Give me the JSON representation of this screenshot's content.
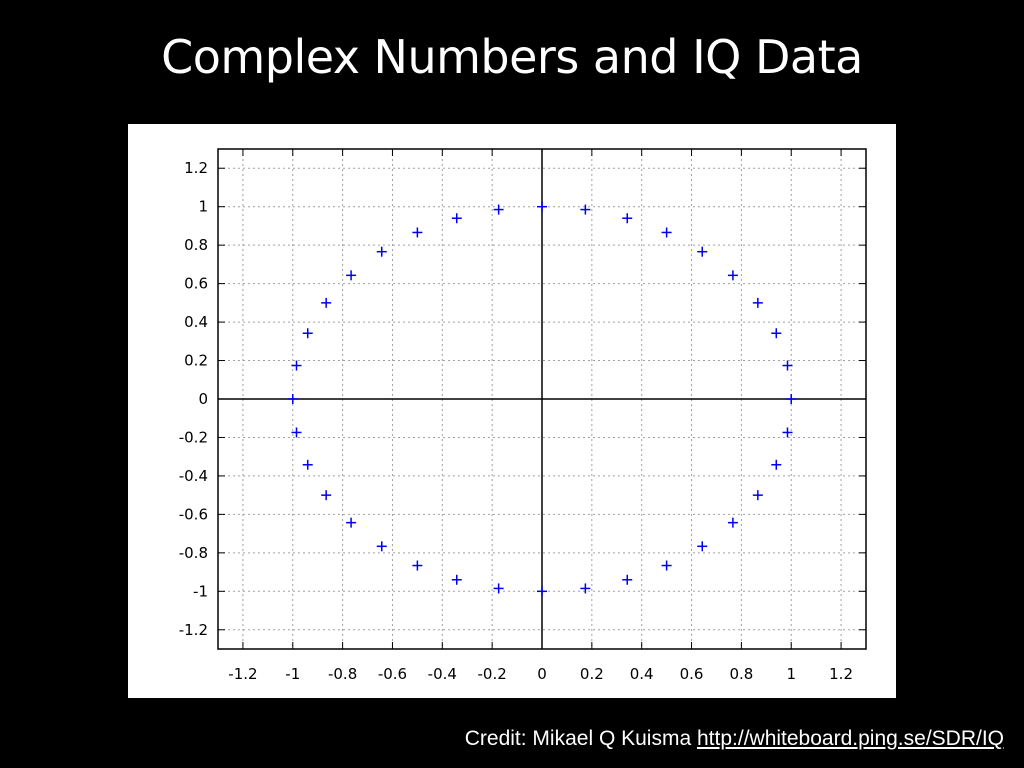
{
  "slide": {
    "title": "Complex Numbers and IQ  Data"
  },
  "credit": {
    "text": "Credit: Mikael Q Kuisma",
    "link": "http://whiteboard.ping.se/SDR/IQ"
  },
  "chart_data": {
    "type": "scatter",
    "title": "",
    "xlabel": "",
    "ylabel": "",
    "xlim": [
      -1.3,
      1.3
    ],
    "ylim": [
      -1.3,
      1.3
    ],
    "grid": true,
    "grid_style": "dotted",
    "axes_through_origin": true,
    "marker": "plus",
    "colors": {
      "marker": "#0000ee",
      "grid": "#a0a0a0",
      "axis": "#000000"
    },
    "xticks": [
      {
        "value": -1.2,
        "label": "-1.2"
      },
      {
        "value": -1.0,
        "label": "-1"
      },
      {
        "value": -0.8,
        "label": "-0.8"
      },
      {
        "value": -0.6,
        "label": "-0.6"
      },
      {
        "value": -0.4,
        "label": "-0.4"
      },
      {
        "value": -0.2,
        "label": "-0.2"
      },
      {
        "value": 0.0,
        "label": "0"
      },
      {
        "value": 0.2,
        "label": "0.2"
      },
      {
        "value": 0.4,
        "label": "0.4"
      },
      {
        "value": 0.6,
        "label": "0.6"
      },
      {
        "value": 0.8,
        "label": "0.8"
      },
      {
        "value": 1.0,
        "label": "1"
      },
      {
        "value": 1.2,
        "label": "1.2"
      }
    ],
    "yticks": [
      {
        "value": 1.2,
        "label": "1.2"
      },
      {
        "value": 1.0,
        "label": "1"
      },
      {
        "value": 0.8,
        "label": "0.8"
      },
      {
        "value": 0.6,
        "label": "0.6"
      },
      {
        "value": 0.4,
        "label": "0.4"
      },
      {
        "value": 0.2,
        "label": "0.2"
      },
      {
        "value": 0.0,
        "label": "0"
      },
      {
        "value": -0.2,
        "label": "-0.2"
      },
      {
        "value": -0.4,
        "label": "-0.4"
      },
      {
        "value": -0.6,
        "label": "-0.6"
      },
      {
        "value": -0.8,
        "label": "-0.8"
      },
      {
        "value": -1.0,
        "label": "-1"
      },
      {
        "value": -1.2,
        "label": "-1.2"
      }
    ],
    "points": [
      {
        "x": 1.0,
        "y": 0.0
      },
      {
        "x": 0.985,
        "y": 0.174
      },
      {
        "x": 0.94,
        "y": 0.342
      },
      {
        "x": 0.866,
        "y": 0.5
      },
      {
        "x": 0.766,
        "y": 0.643
      },
      {
        "x": 0.643,
        "y": 0.766
      },
      {
        "x": 0.5,
        "y": 0.866
      },
      {
        "x": 0.342,
        "y": 0.94
      },
      {
        "x": 0.174,
        "y": 0.985
      },
      {
        "x": 0.0,
        "y": 1.0
      },
      {
        "x": -0.174,
        "y": 0.985
      },
      {
        "x": -0.342,
        "y": 0.94
      },
      {
        "x": -0.5,
        "y": 0.866
      },
      {
        "x": -0.643,
        "y": 0.766
      },
      {
        "x": -0.766,
        "y": 0.643
      },
      {
        "x": -0.866,
        "y": 0.5
      },
      {
        "x": -0.94,
        "y": 0.342
      },
      {
        "x": -0.985,
        "y": 0.174
      },
      {
        "x": -1.0,
        "y": 0.0
      },
      {
        "x": -0.985,
        "y": -0.174
      },
      {
        "x": -0.94,
        "y": -0.342
      },
      {
        "x": -0.866,
        "y": -0.5
      },
      {
        "x": -0.766,
        "y": -0.643
      },
      {
        "x": -0.643,
        "y": -0.766
      },
      {
        "x": -0.5,
        "y": -0.866
      },
      {
        "x": -0.342,
        "y": -0.94
      },
      {
        "x": -0.174,
        "y": -0.985
      },
      {
        "x": 0.0,
        "y": -1.0
      },
      {
        "x": 0.174,
        "y": -0.985
      },
      {
        "x": 0.342,
        "y": -0.94
      },
      {
        "x": 0.5,
        "y": -0.866
      },
      {
        "x": 0.643,
        "y": -0.766
      },
      {
        "x": 0.766,
        "y": -0.643
      },
      {
        "x": 0.866,
        "y": -0.5
      },
      {
        "x": 0.94,
        "y": -0.342
      },
      {
        "x": 0.985,
        "y": -0.174
      }
    ]
  }
}
